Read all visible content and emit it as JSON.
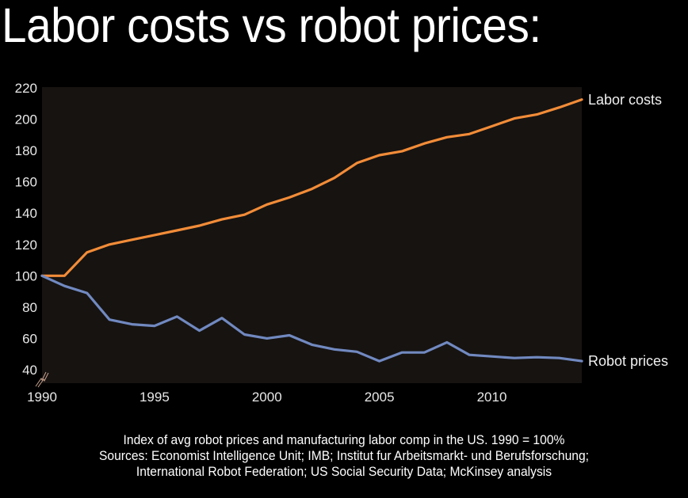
{
  "title": "Labor costs vs robot prices:",
  "chart_data": {
    "type": "line",
    "title": "Labor costs vs robot prices:",
    "xlabel": "",
    "ylabel": "",
    "x": [
      1990,
      1991,
      1992,
      1993,
      1994,
      1995,
      1996,
      1997,
      1998,
      1999,
      2000,
      2001,
      2002,
      2003,
      2004,
      2005,
      2006,
      2007,
      2008,
      2009,
      2010,
      2011,
      2012,
      2013,
      2014
    ],
    "xlim": [
      1990,
      2014
    ],
    "ylim": [
      40,
      220
    ],
    "x_ticks": [
      1990,
      1995,
      2000,
      2005,
      2010
    ],
    "x_tick_labels": [
      "1990",
      "1995",
      "2000",
      "2005",
      "2010"
    ],
    "y_ticks": [
      40,
      60,
      80,
      100,
      120,
      140,
      160,
      180,
      200,
      220
    ],
    "y_tick_labels": [
      "40",
      "60",
      "80",
      "100",
      "120",
      "140",
      "160",
      "180",
      "200",
      "220"
    ],
    "grid": false,
    "axis_break": "y-axis-bottom",
    "legend": "end-of-line labels, right",
    "series": [
      {
        "name": "Labor costs",
        "color": "#f28c38",
        "values": [
          100,
          100,
          115,
          120,
          123,
          126,
          129,
          132,
          136,
          139,
          145.5,
          150,
          155.5,
          162.5,
          172,
          177,
          179.5,
          184.5,
          188.5,
          190.5,
          195.5,
          200.5,
          203,
          207.5,
          212.5
        ]
      },
      {
        "name": "Robot prices",
        "color": "#7189c0",
        "values": [
          100,
          93.5,
          89,
          72,
          69,
          68,
          74,
          65,
          73,
          62.5,
          60,
          62,
          56,
          53,
          51.5,
          45.5,
          51,
          51,
          57.5,
          49.5,
          48.5,
          47.5,
          48,
          47.5,
          45.5
        ]
      }
    ],
    "plot_background": "#161311",
    "break_mark_color": "#c9a38f"
  },
  "caption": {
    "line1": "Index of avg robot prices and manufacturing labor comp in the US. 1990 = 100%",
    "line2": "Sources: Economist Intelligence Unit; IMB; Institut fur Arbeitsmarkt- und Berufsforschung;",
    "line3": "International Robot Federation; US Social Security Data; McKinsey analysis"
  }
}
